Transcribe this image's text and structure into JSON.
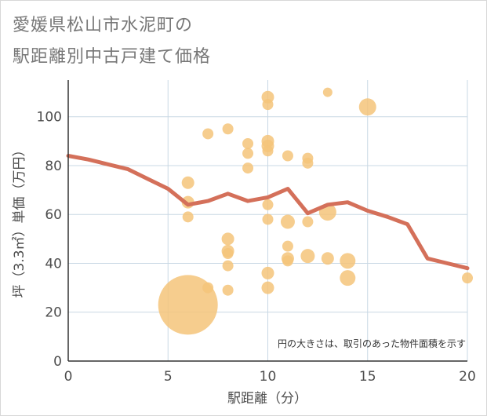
{
  "header": {
    "title_line1": "愛媛県松山市水泥町の",
    "title_line2": "駅距離別中古戸建て価格"
  },
  "chart_data": {
    "type": "scatter",
    "xlabel": "駅距離（分）",
    "ylabel": "坪（3.3㎡）単価（万円）",
    "xlim": [
      0,
      20
    ],
    "ylim": [
      0,
      115
    ],
    "xticks": [
      0,
      5,
      10,
      15,
      20
    ],
    "yticks": [
      0,
      20,
      40,
      60,
      80,
      100
    ],
    "grid": true,
    "annotation": "円の大きさは、取引のあった物件面積を示す",
    "colors": {
      "bubble": "#f4c47a",
      "line": "#d4705a",
      "grid": "#c9d8e4",
      "plot_bg": "#ffffff"
    },
    "points": [
      {
        "x": 6,
        "y": 23,
        "size": 38
      },
      {
        "x": 6,
        "y": 73,
        "size": 8
      },
      {
        "x": 6,
        "y": 65,
        "size": 8
      },
      {
        "x": 6,
        "y": 59,
        "size": 7
      },
      {
        "x": 7,
        "y": 93,
        "size": 7
      },
      {
        "x": 7,
        "y": 30,
        "size": 7
      },
      {
        "x": 8,
        "y": 95,
        "size": 7
      },
      {
        "x": 8,
        "y": 50,
        "size": 8
      },
      {
        "x": 8,
        "y": 45,
        "size": 8
      },
      {
        "x": 8,
        "y": 44,
        "size": 7
      },
      {
        "x": 8,
        "y": 39,
        "size": 7
      },
      {
        "x": 8,
        "y": 29,
        "size": 7
      },
      {
        "x": 9,
        "y": 89,
        "size": 7
      },
      {
        "x": 9,
        "y": 85,
        "size": 7
      },
      {
        "x": 9,
        "y": 79,
        "size": 7
      },
      {
        "x": 10,
        "y": 108,
        "size": 8
      },
      {
        "x": 10,
        "y": 105,
        "size": 7
      },
      {
        "x": 10,
        "y": 90,
        "size": 8
      },
      {
        "x": 10,
        "y": 88,
        "size": 8
      },
      {
        "x": 10,
        "y": 86,
        "size": 7
      },
      {
        "x": 10,
        "y": 64,
        "size": 7
      },
      {
        "x": 10,
        "y": 58,
        "size": 7
      },
      {
        "x": 10,
        "y": 36,
        "size": 8
      },
      {
        "x": 10,
        "y": 30,
        "size": 8
      },
      {
        "x": 11,
        "y": 84,
        "size": 7
      },
      {
        "x": 11,
        "y": 57,
        "size": 9
      },
      {
        "x": 11,
        "y": 47,
        "size": 7
      },
      {
        "x": 11,
        "y": 42,
        "size": 8
      },
      {
        "x": 11,
        "y": 41,
        "size": 7
      },
      {
        "x": 12,
        "y": 83,
        "size": 7
      },
      {
        "x": 12,
        "y": 81,
        "size": 7
      },
      {
        "x": 12,
        "y": 57,
        "size": 7
      },
      {
        "x": 12,
        "y": 43,
        "size": 9
      },
      {
        "x": 13,
        "y": 110,
        "size": 6
      },
      {
        "x": 13,
        "y": 61,
        "size": 11
      },
      {
        "x": 13,
        "y": 42,
        "size": 8
      },
      {
        "x": 14,
        "y": 41,
        "size": 10
      },
      {
        "x": 14,
        "y": 34,
        "size": 10
      },
      {
        "x": 15,
        "y": 104,
        "size": 11
      },
      {
        "x": 20,
        "y": 34,
        "size": 7
      }
    ],
    "trend": {
      "x": [
        0,
        1,
        2,
        3,
        4,
        5,
        6,
        7,
        8,
        9,
        10,
        11,
        12,
        13,
        14,
        15,
        16,
        17,
        18,
        19,
        20
      ],
      "y": [
        84,
        82.5,
        80.5,
        78.5,
        74.5,
        70.5,
        64,
        65.5,
        68.5,
        65.5,
        67,
        70.5,
        60.5,
        64,
        65,
        61.5,
        59,
        56,
        42,
        40,
        38
      ]
    }
  }
}
